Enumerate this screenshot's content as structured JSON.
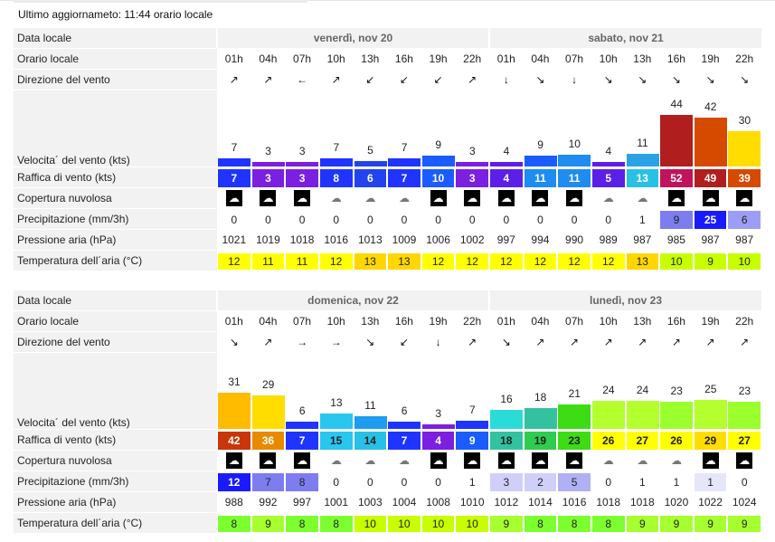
{
  "updated": "Ultimo aggiornameto: 11:44 orario locale",
  "labels": {
    "date": "Data locale",
    "time": "Orario locale",
    "dir": "Direzione del vento",
    "speed": "Velocita´ del vento (kts)",
    "gust": "Raffica di vento (kts)",
    "cloud": "Copertura nuvolosa",
    "prec": "Precipitazione (mm/3h)",
    "press": "Pressione aria (hPa)",
    "temp": "Temperatura dell´aria (°C)"
  },
  "blocks": [
    {
      "days": [
        "venerdì, nov 20",
        "sabato, nov 21"
      ],
      "times": [
        "01h",
        "04h",
        "07h",
        "10h",
        "13h",
        "16h",
        "19h",
        "22h",
        "01h",
        "04h",
        "07h",
        "10h",
        "13h",
        "16h",
        "19h",
        "22h"
      ],
      "dirs": [
        "↗",
        "↗",
        "←",
        "↗",
        "↙",
        "↙",
        "↙",
        "↗",
        "↓",
        "↘",
        "↓",
        "↘",
        "↘",
        "↘",
        "↘",
        "↘"
      ],
      "speed": [
        7,
        3,
        3,
        7,
        5,
        7,
        9,
        3,
        4,
        9,
        10,
        4,
        11,
        44,
        42,
        30
      ],
      "speed_colors": [
        "#1f35ff",
        "#7b1fe0",
        "#7b1fe0",
        "#1f35ff",
        "#2244ee",
        "#1f35ff",
        "#1a5cff",
        "#7b1fe0",
        "#5b1fe8",
        "#1a5cff",
        "#1e8cf0",
        "#5b1fe8",
        "#29a3e6",
        "#b01e1e",
        "#d64a00",
        "#ffdd00"
      ],
      "gust": [
        "7",
        "3",
        "3",
        "8",
        "6",
        "7",
        "10",
        "3",
        "4",
        "11",
        "11",
        "5",
        "13",
        "52",
        "49",
        "39"
      ],
      "gust_colors": [
        "#1f35ff",
        "#7b1fe0",
        "#7b1fe0",
        "#1f35ff",
        "#2244ee",
        "#1f35ff",
        "#1a5cff",
        "#7b1fe0",
        "#5b1fe8",
        "#1e8cf0",
        "#1e8cf0",
        "#5b1fe8",
        "#29c0e6",
        "#c0135a",
        "#b01e1e",
        "#d64a00"
      ],
      "gust_dark": [
        false,
        false,
        false,
        false,
        false,
        false,
        false,
        false,
        false,
        false,
        false,
        false,
        false,
        false,
        false,
        false
      ],
      "cloud": [
        "night",
        "night",
        "night",
        "day",
        "day",
        "day",
        "night",
        "night",
        "night",
        "night",
        "night",
        "day",
        "day",
        "night",
        "night",
        "night"
      ],
      "prec": [
        "0",
        "0",
        "0",
        "0",
        "0",
        "0",
        "0",
        "0",
        "0",
        "0",
        "0",
        "0",
        "1",
        "9",
        "25",
        "6"
      ],
      "prec_colors": [
        "",
        "",
        "",
        "",
        "",
        "",
        "",
        "",
        "",
        "",
        "",
        "",
        "",
        "#7d7df0",
        "#1a1aff",
        "#9d9df5"
      ],
      "press": [
        "1021",
        "1019",
        "1018",
        "1016",
        "1013",
        "1009",
        "1006",
        "1002",
        "997",
        "994",
        "990",
        "989",
        "987",
        "985",
        "987",
        "987"
      ],
      "temp": [
        "12",
        "11",
        "11",
        "12",
        "13",
        "13",
        "12",
        "12",
        "12",
        "12",
        "12",
        "12",
        "13",
        "10",
        "9",
        "10"
      ],
      "temp_colors": [
        "#ffff00",
        "#ffff00",
        "#ffff00",
        "#ffff00",
        "#ffd700",
        "#ffd700",
        "#ffff00",
        "#ffff00",
        "#ffff00",
        "#ffff00",
        "#ffff00",
        "#ffff00",
        "#ffd700",
        "#c8ff00",
        "#c8ff00",
        "#c8ff00"
      ]
    },
    {
      "days": [
        "domenica, nov 22",
        "lunedì, nov 23"
      ],
      "times": [
        "01h",
        "04h",
        "07h",
        "10h",
        "13h",
        "16h",
        "19h",
        "22h",
        "01h",
        "04h",
        "07h",
        "10h",
        "13h",
        "16h",
        "19h",
        "22h"
      ],
      "dirs": [
        "↘",
        "↗",
        "→",
        "→",
        "↘",
        "↙",
        "↓",
        "↗",
        "↘",
        "↗",
        "↗",
        "↗",
        "↗",
        "↗",
        "↗",
        "↗"
      ],
      "speed": [
        31,
        29,
        6,
        13,
        11,
        6,
        3,
        7,
        16,
        18,
        21,
        24,
        24,
        23,
        25,
        23
      ],
      "speed_colors": [
        "#ffbb00",
        "#ffdd00",
        "#1f35ff",
        "#29c6ef",
        "#1e9cf0",
        "#1f35ff",
        "#7b1fe0",
        "#1f35ff",
        "#29dcd8",
        "#33c2a0",
        "#3ddc14",
        "#b4ff2e",
        "#b4ff2e",
        "#9bff2e",
        "#b4ff2e",
        "#9bff2e"
      ],
      "gust": [
        "42",
        "36",
        "7",
        "15",
        "14",
        "7",
        "4",
        "9",
        "18",
        "19",
        "23",
        "26",
        "27",
        "26",
        "29",
        "27"
      ],
      "gust_colors": [
        "#c8360a",
        "#e88a00",
        "#1f35ff",
        "#29c6ef",
        "#29c0e6",
        "#1f35ff",
        "#7b1fe0",
        "#1a5cff",
        "#33c2a0",
        "#2ecc50",
        "#3ddc14",
        "#ffff00",
        "#ffff00",
        "#ffff00",
        "#ffdd00",
        "#ffff00"
      ],
      "gust_dark": [
        false,
        false,
        false,
        true,
        true,
        false,
        false,
        false,
        true,
        true,
        true,
        true,
        true,
        true,
        true,
        true
      ],
      "cloud": [
        "night",
        "night",
        "night",
        "day",
        "day",
        "day",
        "night",
        "night",
        "night",
        "night",
        "night",
        "day",
        "day",
        "day",
        "night",
        "night"
      ],
      "prec": [
        "12",
        "7",
        "8",
        "0",
        "0",
        "0",
        "0",
        "1",
        "3",
        "2",
        "5",
        "0",
        "1",
        "1",
        "1",
        "0"
      ],
      "prec_colors": [
        "#1a1aff",
        "#7d7df0",
        "#7d7df0",
        "",
        "",
        "",
        "",
        "",
        "#cfcff9",
        "#cfcff9",
        "#b0b0f5",
        "",
        "",
        "",
        "#e6e6fb",
        ""
      ],
      "press": [
        "988",
        "992",
        "997",
        "1001",
        "1003",
        "1004",
        "1008",
        "1010",
        "1012",
        "1014",
        "1016",
        "1018",
        "1018",
        "1020",
        "1022",
        "1024"
      ],
      "temp": [
        "8",
        "9",
        "8",
        "8",
        "10",
        "10",
        "10",
        "10",
        "9",
        "8",
        "8",
        "8",
        "9",
        "9",
        "9",
        "9"
      ],
      "temp_colors": [
        "#7cff2e",
        "#a6ff2e",
        "#7cff2e",
        "#7cff2e",
        "#c8ff00",
        "#c8ff00",
        "#c8ff00",
        "#c8ff00",
        "#a6ff2e",
        "#7cff2e",
        "#7cff2e",
        "#7cff2e",
        "#a6ff2e",
        "#a6ff2e",
        "#a6ff2e",
        "#a6ff2e"
      ]
    }
  ],
  "icons": {
    "cloud_night": "cloudy-night-icon",
    "cloud_day": "cloudy-day-icon"
  }
}
